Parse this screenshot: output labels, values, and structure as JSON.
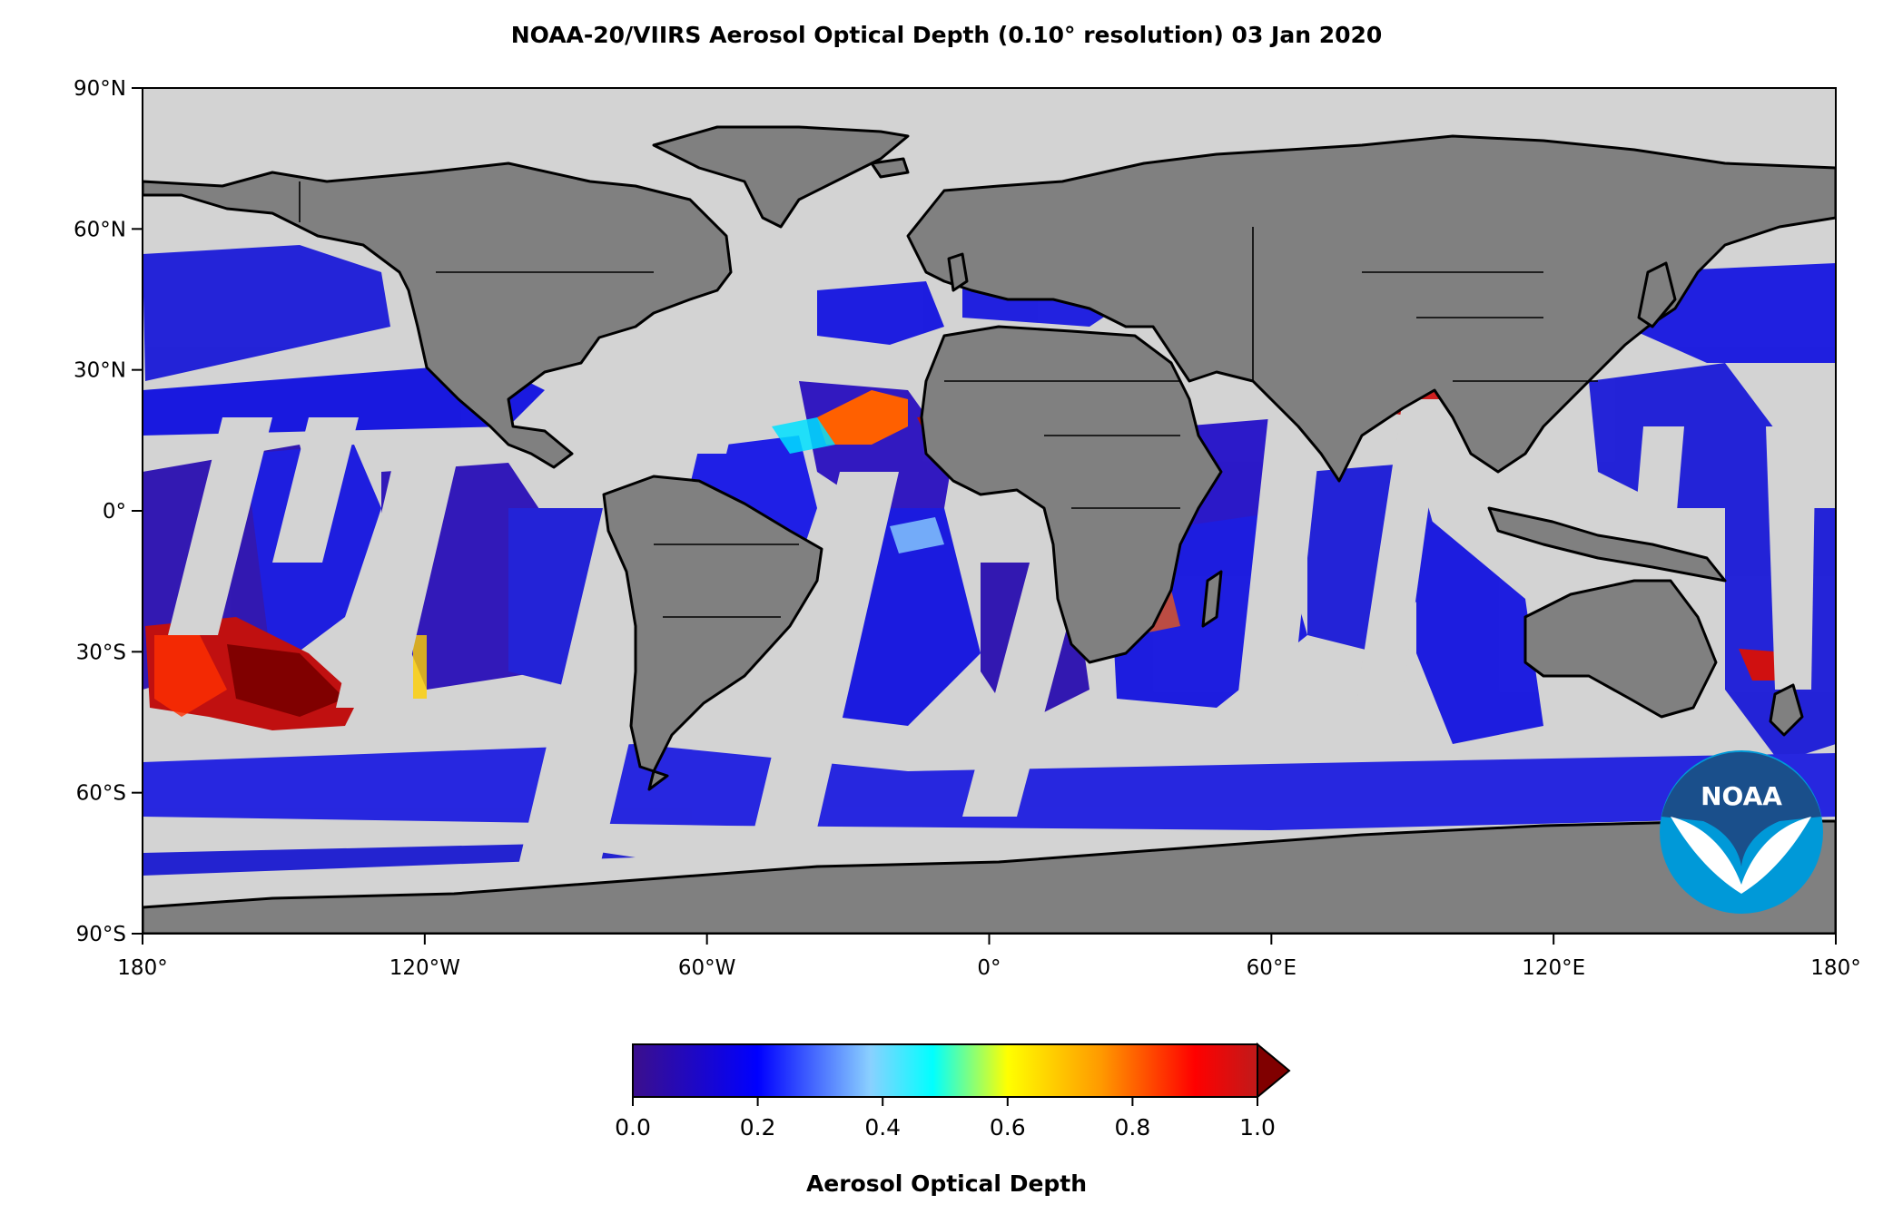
{
  "title": "NOAA-20/VIIRS Aerosol Optical Depth (0.10° resolution)  03 Jan 2020",
  "map": {
    "projection": "equirectangular",
    "lon_range": [
      -180,
      180
    ],
    "lat_range": [
      -90,
      90
    ],
    "ocean_color": "#d3d3d3",
    "land_color": "#808080",
    "coastline_color": "#000000"
  },
  "axes": {
    "y_ticks": [
      {
        "value": 90,
        "label": "90°N"
      },
      {
        "value": 60,
        "label": "60°N"
      },
      {
        "value": 30,
        "label": "30°N"
      },
      {
        "value": 0,
        "label": "0°"
      },
      {
        "value": -30,
        "label": "30°S"
      },
      {
        "value": -60,
        "label": "60°S"
      },
      {
        "value": -90,
        "label": "90°S"
      }
    ],
    "x_ticks": [
      {
        "value": -180,
        "label": "180°"
      },
      {
        "value": -120,
        "label": "120°W"
      },
      {
        "value": -60,
        "label": "60°W"
      },
      {
        "value": 0,
        "label": "0°"
      },
      {
        "value": 60,
        "label": "60°E"
      },
      {
        "value": 120,
        "label": "120°E"
      },
      {
        "value": 180,
        "label": "180°"
      }
    ]
  },
  "colorbar": {
    "label": "Aerosol Optical Depth",
    "range": [
      0.0,
      1.0
    ],
    "extend": "max",
    "ticks": [
      {
        "value": 0.0,
        "label": "0.0"
      },
      {
        "value": 0.2,
        "label": "0.2"
      },
      {
        "value": 0.4,
        "label": "0.4"
      },
      {
        "value": 0.6,
        "label": "0.6"
      },
      {
        "value": 0.8,
        "label": "0.8"
      },
      {
        "value": 1.0,
        "label": "1.0"
      }
    ],
    "colors": [
      "#3b0f8c",
      "#0000ff",
      "#8ad0ff",
      "#00ffff",
      "#ffff00",
      "#ff9900",
      "#ff0000",
      "#800000"
    ]
  },
  "logo": {
    "text": "NOAA",
    "outer_color": "#0099d8",
    "inner_color": "#1a4f8b"
  }
}
